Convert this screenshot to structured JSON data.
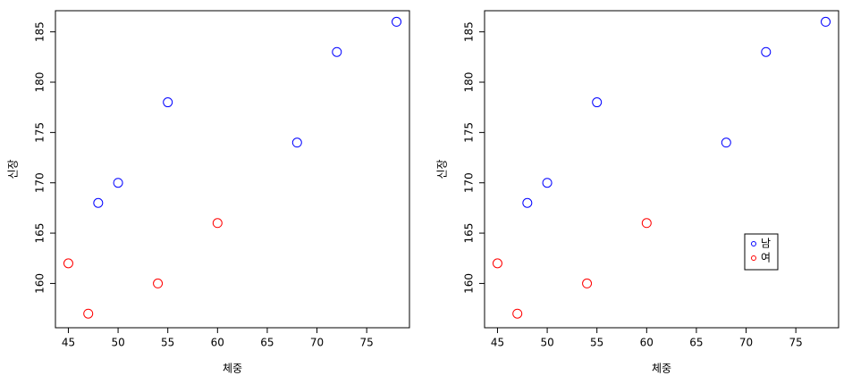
{
  "chart_data": [
    {
      "type": "scatter",
      "x_label": "체중",
      "y_label": "신장",
      "series": [
        {
          "color": "#0000ff",
          "x": [
            48,
            50,
            55,
            68,
            72,
            78
          ],
          "values": [
            168,
            170,
            178,
            174,
            183,
            186
          ]
        },
        {
          "color": "#ff0000",
          "x": [
            45,
            47,
            54,
            60
          ],
          "values": [
            162,
            157,
            160,
            166
          ]
        }
      ],
      "xlim": [
        43.7,
        79.3
      ],
      "ylim": [
        155.6,
        187.1
      ],
      "xticks": [
        45,
        50,
        55,
        60,
        65,
        70,
        75
      ],
      "yticks": [
        160,
        165,
        170,
        175,
        180,
        185
      ]
    },
    {
      "type": "scatter",
      "x_label": "체중",
      "y_label": "신장",
      "series": [
        {
          "name": "남",
          "color": "#0000ff",
          "x": [
            48,
            50,
            55,
            68,
            72,
            78
          ],
          "values": [
            168,
            170,
            178,
            174,
            183,
            186
          ]
        },
        {
          "name": "여",
          "color": "#ff0000",
          "x": [
            45,
            47,
            54,
            60
          ],
          "values": [
            162,
            157,
            160,
            166
          ]
        }
      ],
      "xlim": [
        43.7,
        79.3
      ],
      "ylim": [
        155.6,
        187.1
      ],
      "xticks": [
        45,
        50,
        55,
        60,
        65,
        70,
        75
      ],
      "yticks": [
        160,
        165,
        170,
        175,
        180,
        185
      ],
      "legend": "right"
    }
  ]
}
